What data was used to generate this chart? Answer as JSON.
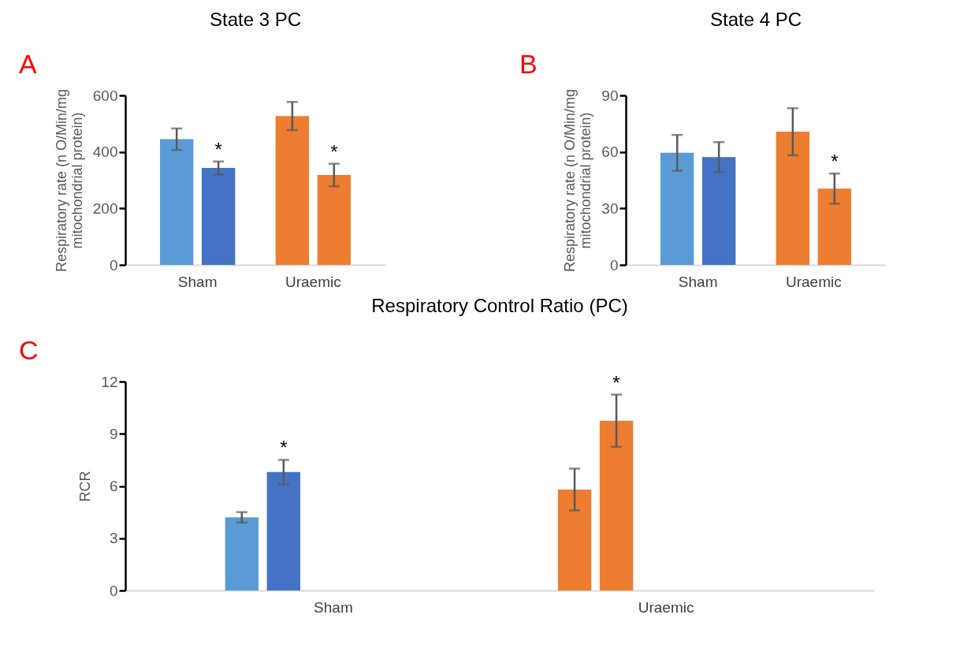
{
  "chart_data": [
    {
      "type": "bar",
      "title": "State 3 PC",
      "ylabel": "Respiratory rate (n O/Min/mg mitochondrial protein)",
      "categories": [
        "Sham",
        "Uraemic"
      ],
      "ylim": [
        0,
        600
      ],
      "yticks": [
        0,
        200,
        400,
        600
      ],
      "grid": false,
      "series": [
        {
          "colors": [
            "#5b9bd5",
            "#ed7d31"
          ],
          "values": [
            445,
            527
          ],
          "errors": [
            38,
            50
          ]
        },
        {
          "colors": [
            "#4472c4",
            "#ed7d31"
          ],
          "values": [
            343,
            318
          ],
          "errors": [
            23,
            40
          ],
          "value_labels": [
            "*",
            "*"
          ]
        }
      ],
      "annotations": [
        "A"
      ]
    },
    {
      "type": "bar",
      "title": "State 4 PC",
      "ylabel": "Respiratory rate (n O/Min/mg mitochondrial protein)",
      "categories": [
        "Sham",
        "Uraemic"
      ],
      "ylim": [
        0,
        90
      ],
      "yticks": [
        0,
        30,
        60,
        90
      ],
      "grid": false,
      "series": [
        {
          "colors": [
            "#5b9bd5",
            "#ed7d31"
          ],
          "values": [
            59.5,
            70.7
          ],
          "errors": [
            9.5,
            12.5
          ]
        },
        {
          "colors": [
            "#4472c4",
            "#ed7d31"
          ],
          "values": [
            57.2,
            40.5
          ],
          "errors": [
            8,
            8
          ],
          "value_labels": [
            null,
            "*"
          ]
        }
      ],
      "annotations": [
        "B"
      ]
    },
    {
      "type": "bar",
      "title": "Respiratory Control Ratio (PC)",
      "ylabel": "RCR",
      "categories": [
        "Sham",
        "Uraemic"
      ],
      "ylim": [
        0,
        12
      ],
      "yticks": [
        0,
        3,
        6,
        9,
        12
      ],
      "grid": false,
      "series": [
        {
          "colors": [
            "#5b9bd5",
            "#ed7d31"
          ],
          "values": [
            4.2,
            5.8
          ],
          "errors": [
            0.3,
            1.2
          ]
        },
        {
          "colors": [
            "#4472c4",
            "#ed7d31"
          ],
          "values": [
            6.8,
            9.75
          ],
          "errors": [
            0.7,
            1.5
          ],
          "value_labels": [
            "*",
            "*"
          ]
        }
      ],
      "annotations": [
        "C"
      ]
    }
  ]
}
